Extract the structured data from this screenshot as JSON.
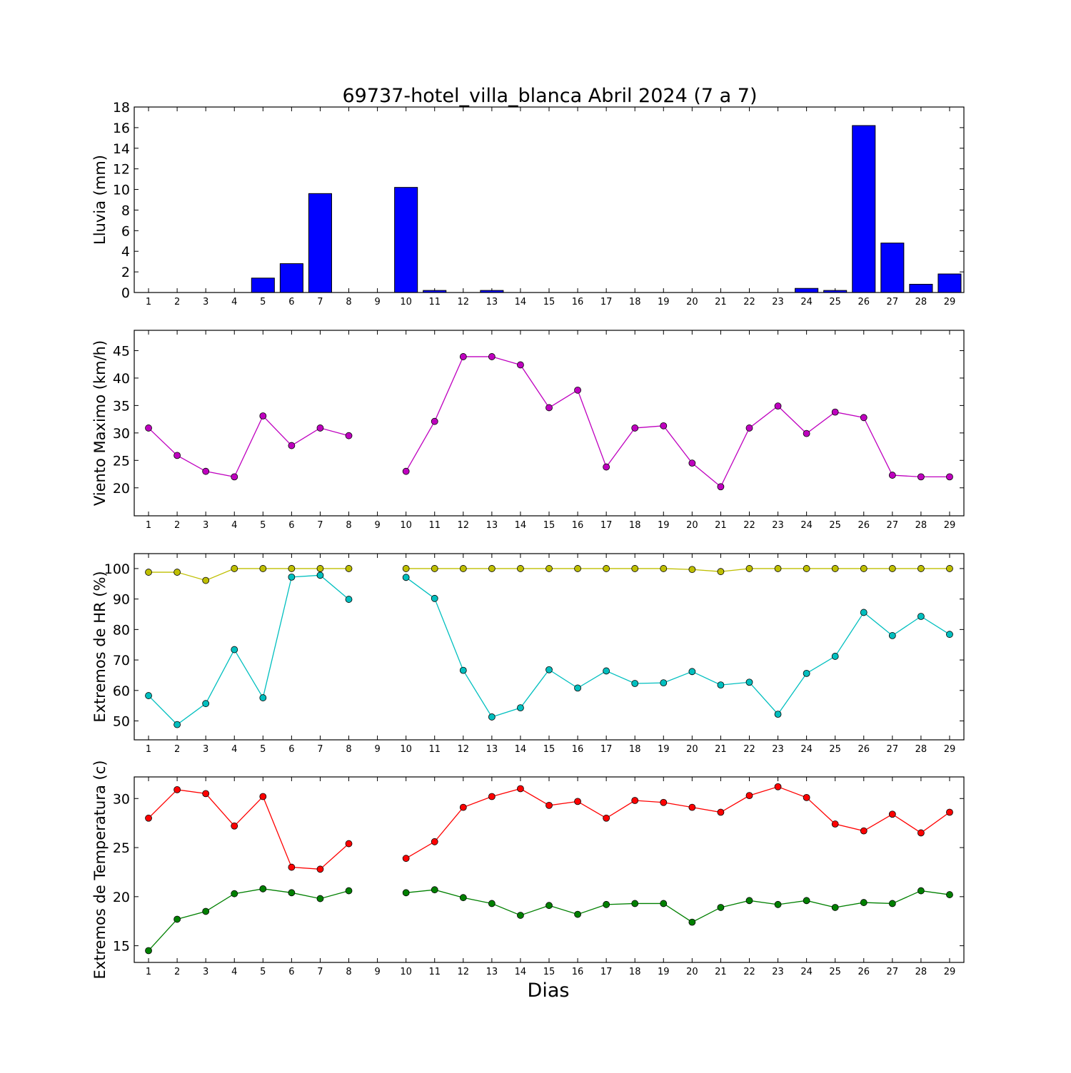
{
  "figure": {
    "title": "69737-hotel_villa_blanca Abril 2024  (7 a 7)",
    "xlabel": "Dias"
  },
  "chart_data": [
    {
      "type": "bar",
      "ylabel": "Lluvia (mm)",
      "ylim": [
        0,
        18
      ],
      "yticks": [
        0,
        2,
        4,
        6,
        8,
        10,
        12,
        14,
        16,
        18
      ],
      "x": [
        1,
        2,
        3,
        4,
        5,
        6,
        7,
        8,
        9,
        10,
        11,
        12,
        13,
        14,
        15,
        16,
        17,
        18,
        19,
        20,
        21,
        22,
        23,
        24,
        25,
        26,
        27,
        28,
        29
      ],
      "series": [
        {
          "color": "#0000ff",
          "values": [
            0,
            0,
            0,
            0,
            1.4,
            2.8,
            9.6,
            0,
            0,
            10.2,
            0.2,
            0,
            0.2,
            0,
            0,
            0,
            0,
            0,
            0,
            0,
            0,
            0,
            0,
            0.4,
            0.2,
            16.2,
            4.8,
            0.8,
            1.8
          ]
        }
      ]
    },
    {
      "type": "line",
      "ylabel": "Viento Maximo (km/h)",
      "ylim": [
        14.9,
        48.7
      ],
      "yticks": [
        20,
        25,
        30,
        35,
        40,
        45
      ],
      "x": [
        1,
        2,
        3,
        4,
        5,
        6,
        7,
        8,
        9,
        10,
        11,
        12,
        13,
        14,
        15,
        16,
        17,
        18,
        19,
        20,
        21,
        22,
        23,
        24,
        25,
        26,
        27,
        28,
        29
      ],
      "series": [
        {
          "color": "#bf00bf",
          "values": [
            30.9,
            25.9,
            23.0,
            22.0,
            33.1,
            27.7,
            30.9,
            29.5,
            null,
            23.0,
            32.1,
            43.9,
            43.9,
            42.4,
            34.6,
            37.8,
            23.8,
            30.9,
            31.3,
            24.5,
            20.2,
            30.9,
            34.9,
            29.9,
            33.8,
            32.8,
            22.3,
            22.0,
            22.0
          ]
        }
      ]
    },
    {
      "type": "line",
      "ylabel": "Extremos de HR (%)",
      "ylim": [
        43.8,
        104.9
      ],
      "yticks": [
        50,
        60,
        70,
        80,
        90,
        100
      ],
      "x": [
        1,
        2,
        3,
        4,
        5,
        6,
        7,
        8,
        9,
        10,
        11,
        12,
        13,
        14,
        15,
        16,
        17,
        18,
        19,
        20,
        21,
        22,
        23,
        24,
        25,
        26,
        27,
        28,
        29
      ],
      "series": [
        {
          "color": "#bfbf00",
          "values": [
            98.8,
            98.8,
            96.1,
            100,
            100,
            100,
            100,
            100,
            null,
            100,
            100,
            100,
            100,
            100,
            100,
            100,
            100,
            100,
            100,
            99.7,
            99.0,
            100,
            100,
            100,
            100,
            100,
            100,
            100,
            100
          ]
        },
        {
          "color": "#00bfbf",
          "values": [
            58.3,
            48.8,
            55.7,
            73.4,
            57.6,
            97.2,
            97.8,
            89.9,
            null,
            97.1,
            90.2,
            66.6,
            51.3,
            54.3,
            66.8,
            60.8,
            66.4,
            62.3,
            62.5,
            66.2,
            61.8,
            62.7,
            52.2,
            65.6,
            71.2,
            85.6,
            78.0,
            84.3,
            78.4
          ]
        }
      ]
    },
    {
      "type": "line",
      "ylabel": "Extremos de Temperatura (c)",
      "ylim": [
        13.3,
        32.2
      ],
      "yticks": [
        15,
        20,
        25,
        30
      ],
      "x": [
        1,
        2,
        3,
        4,
        5,
        6,
        7,
        8,
        9,
        10,
        11,
        12,
        13,
        14,
        15,
        16,
        17,
        18,
        19,
        20,
        21,
        22,
        23,
        24,
        25,
        26,
        27,
        28,
        29
      ],
      "series": [
        {
          "color": "#ff0000",
          "values": [
            28.0,
            30.9,
            30.5,
            27.2,
            30.2,
            23.0,
            22.8,
            25.4,
            null,
            23.9,
            25.6,
            29.1,
            30.2,
            31.0,
            29.3,
            29.7,
            28.0,
            29.8,
            29.6,
            29.1,
            28.6,
            30.3,
            31.2,
            30.1,
            27.4,
            26.7,
            28.4,
            26.5,
            28.6
          ]
        },
        {
          "color": "#008000",
          "values": [
            14.5,
            17.7,
            18.5,
            20.3,
            20.8,
            20.4,
            19.8,
            20.6,
            null,
            20.4,
            20.7,
            19.9,
            19.3,
            18.1,
            19.1,
            18.2,
            19.2,
            19.3,
            19.3,
            17.4,
            18.9,
            19.6,
            19.2,
            19.6,
            18.9,
            19.4,
            19.3,
            20.6,
            20.2
          ]
        }
      ]
    }
  ]
}
